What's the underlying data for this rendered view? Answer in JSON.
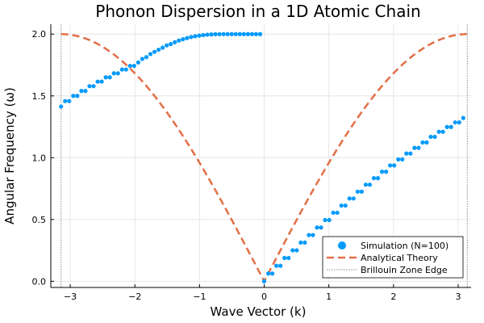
{
  "chart_data": {
    "type": "line",
    "title": "Phonon Dispersion in a 1D Atomic Chain",
    "xlabel": "Wave Vector (k)",
    "ylabel": "Angular Frequency (ω)",
    "xlim": [
      -3.3,
      3.2
    ],
    "ylim": [
      -0.05,
      2.08
    ],
    "x_ticks": [
      -3,
      -2,
      -1,
      0,
      1,
      2,
      3
    ],
    "x_tick_labels": [
      "−3",
      "−2",
      "−1",
      "0",
      "1",
      "2",
      "3"
    ],
    "y_ticks": [
      0.0,
      0.5,
      1.0,
      1.5,
      2.0
    ],
    "y_tick_labels": [
      "0.0",
      "0.5",
      "1.0",
      "1.5",
      "2.0"
    ],
    "grid": true,
    "legend_position": "bottom-right",
    "series": [
      {
        "name": "Simulation (N=100)",
        "kind": "scatter",
        "color": "#009AFA",
        "x": [
          -3.1416,
          -3.0788,
          -3.0159,
          -2.9531,
          -2.8903,
          -2.8274,
          -2.7646,
          -2.7018,
          -2.6389,
          -2.5761,
          -2.5133,
          -2.4504,
          -2.3876,
          -2.3248,
          -2.2619,
          -2.1991,
          -2.1363,
          -2.0735,
          -2.0106,
          -1.9478,
          -1.885,
          -1.8221,
          -1.7593,
          -1.6965,
          -1.6336,
          -1.5708,
          -1.508,
          -1.4451,
          -1.3823,
          -1.3195,
          -1.2566,
          -1.1938,
          -1.131,
          -1.0681,
          -1.0053,
          -0.9425,
          -0.8796,
          -0.8168,
          -0.754,
          -0.6912,
          -0.6283,
          -0.5655,
          -0.5027,
          -0.4398,
          -0.377,
          -0.3142,
          -0.2513,
          -0.1885,
          -0.1257,
          -0.0628,
          0.0,
          0.0628,
          0.1257,
          0.1885,
          0.2513,
          0.3142,
          0.377,
          0.4398,
          0.5027,
          0.5655,
          0.6283,
          0.6912,
          0.754,
          0.8168,
          0.8796,
          0.9425,
          1.0053,
          1.0681,
          1.131,
          1.1938,
          1.2566,
          1.3195,
          1.3823,
          1.4451,
          1.508,
          1.5708,
          1.6336,
          1.6965,
          1.7593,
          1.8221,
          1.885,
          1.9478,
          2.0106,
          2.0735,
          2.1363,
          2.1991,
          2.2619,
          2.3248,
          2.3876,
          2.4504,
          2.5133,
          2.5761,
          2.6389,
          2.7018,
          2.7646,
          2.8274,
          2.8903,
          2.9531,
          3.0159,
          3.0788
        ],
        "y": [
          1.414,
          1.4579,
          1.4579,
          1.5,
          1.5,
          1.5403,
          1.5403,
          1.5789,
          1.5789,
          1.6156,
          1.6156,
          1.6503,
          1.6503,
          1.6829,
          1.6829,
          1.7135,
          1.7135,
          1.7429,
          1.7429,
          1.7705,
          1.7989,
          1.8138,
          1.8387,
          1.8566,
          1.8736,
          1.8903,
          1.9087,
          1.919,
          1.9344,
          1.948,
          1.9585,
          1.9681,
          1.9763,
          1.9826,
          1.9877,
          1.9921,
          1.9955,
          1.9977,
          1.9989,
          1.9996,
          2.0,
          2.0,
          2.0,
          2.0,
          2.0,
          2.0,
          2.0,
          2.0,
          2.0,
          2.0,
          0.0,
          0.0628,
          0.0628,
          0.1256,
          0.1256,
          0.1884,
          0.1884,
          0.2507,
          0.2507,
          0.3132,
          0.3132,
          0.3741,
          0.3741,
          0.4352,
          0.4352,
          0.4954,
          0.4954,
          0.5548,
          0.5548,
          0.6129,
          0.6129,
          0.6698,
          0.6698,
          0.7254,
          0.7254,
          0.7819,
          0.7819,
          0.8346,
          0.8346,
          0.8867,
          0.8867,
          0.9373,
          0.9373,
          0.9863,
          0.9863,
          1.0337,
          1.0337,
          1.0795,
          1.0795,
          1.1236,
          1.1236,
          1.169,
          1.169,
          1.2096,
          1.2096,
          1.2486,
          1.2486,
          1.2858,
          1.2858,
          1.3213
        ]
      },
      {
        "name": "Analytical Theory",
        "kind": "line",
        "style": "dashed",
        "color": "#E26F46",
        "function": "2*|sin(k/2)|",
        "x_range": [
          -3.1416,
          3.1416
        ]
      },
      {
        "name": "Brillouin Zone Edge",
        "kind": "vline",
        "style": "dotted",
        "color": "#8FA3A8",
        "x": [
          -3.1416,
          3.1416
        ]
      }
    ]
  }
}
